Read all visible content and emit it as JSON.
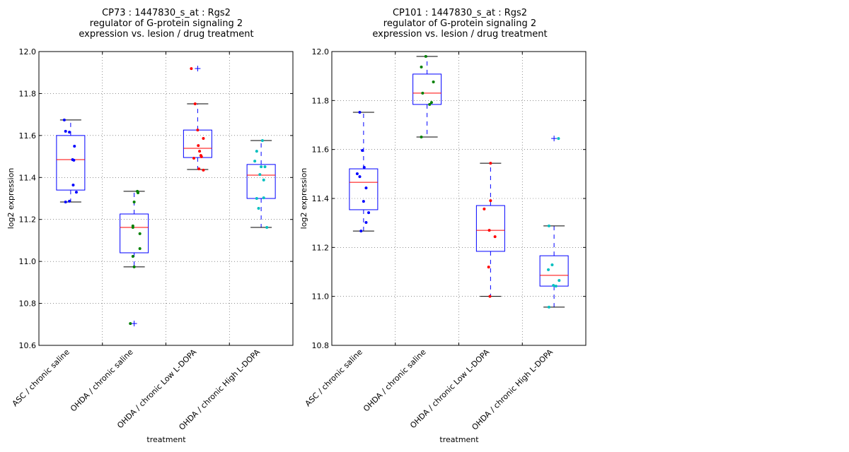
{
  "chart_data": [
    {
      "type": "boxplot",
      "title": [
        "CP73 : 1447830_s_at : Rgs2",
        "regulator of G-protein signaling 2",
        "expression vs. lesion / drug treatment"
      ],
      "xlabel": "treatment",
      "ylabel": "log2 expression",
      "ylim": [
        10.6,
        12.0
      ],
      "yticks": [
        "12.0",
        "11.8",
        "11.6",
        "11.4",
        "11.2",
        "11.0",
        "10.8",
        "10.6"
      ],
      "ytick_values": [
        12.0,
        11.8,
        11.6,
        11.4,
        11.2,
        11.0,
        10.8,
        10.6
      ],
      "grid": true,
      "categories": [
        "ASC / chronic saline",
        "OHDA / chronic saline",
        "OHDA / chronic Low L-DOPA",
        "OHDA / chronic High L-DOPA"
      ],
      "point_colors": [
        "#0000ff",
        "#008000",
        "#ff0000",
        "#00bfbf"
      ],
      "boxes": [
        {
          "whisker_low": 11.283,
          "q1": 11.34,
          "median": 11.485,
          "q3": 11.6,
          "whisker_high": 11.674,
          "outliers": []
        },
        {
          "whisker_low": 10.974,
          "q1": 11.041,
          "median": 11.162,
          "q3": 11.226,
          "whisker_high": 11.334,
          "outliers": [
            10.704
          ]
        },
        {
          "whisker_low": 11.438,
          "q1": 11.495,
          "median": 11.539,
          "q3": 11.626,
          "whisker_high": 11.751,
          "outliers": [
            11.919
          ]
        },
        {
          "whisker_low": 11.162,
          "q1": 11.3,
          "median": 11.411,
          "q3": 11.462,
          "whisker_high": 11.576,
          "outliers": []
        }
      ],
      "points": [
        [
          [
            -0.1,
            11.674
          ],
          [
            -0.08,
            11.62
          ],
          [
            -0.02,
            11.616
          ],
          [
            0.06,
            11.549
          ],
          [
            0.03,
            11.485
          ],
          [
            0.05,
            11.482
          ],
          [
            0.04,
            11.364
          ],
          [
            0.09,
            11.33
          ],
          [
            -0.08,
            11.283
          ],
          [
            -0.02,
            11.287
          ]
        ],
        [
          [
            0.05,
            11.334
          ],
          [
            0.06,
            11.327
          ],
          [
            0.0,
            11.283
          ],
          [
            -0.02,
            11.169
          ],
          [
            -0.02,
            11.162
          ],
          [
            0.09,
            11.132
          ],
          [
            0.09,
            11.061
          ],
          [
            -0.02,
            11.024
          ],
          [
            0.0,
            10.974
          ],
          [
            -0.06,
            10.704
          ]
        ],
        [
          [
            -0.1,
            11.919
          ],
          [
            -0.04,
            11.751
          ],
          [
            0.0,
            11.626
          ],
          [
            0.09,
            11.586
          ],
          [
            0.01,
            11.552
          ],
          [
            0.03,
            11.525
          ],
          [
            0.05,
            11.505
          ],
          [
            0.06,
            11.499
          ],
          [
            -0.06,
            11.492
          ],
          [
            0.02,
            11.441
          ],
          [
            0.09,
            11.435
          ]
        ],
        [
          [
            0.02,
            11.576
          ],
          [
            -0.07,
            11.525
          ],
          [
            -0.1,
            11.478
          ],
          [
            0.0,
            11.451
          ],
          [
            0.06,
            11.451
          ],
          [
            -0.02,
            11.414
          ],
          [
            0.04,
            11.388
          ],
          [
            -0.07,
            11.3
          ],
          [
            0.04,
            11.303
          ],
          [
            -0.04,
            11.253
          ],
          [
            0.09,
            11.162
          ]
        ]
      ]
    },
    {
      "type": "boxplot",
      "title": [
        "CP101 : 1447830_s_at : Rgs2",
        "regulator of G-protein signaling 2",
        "expression vs. lesion / drug treatment"
      ],
      "xlabel": "treatment",
      "ylabel": "log2 expression",
      "ylim": [
        10.8,
        12.0
      ],
      "yticks": [
        "12.0",
        "11.8",
        "11.6",
        "11.4",
        "11.2",
        "11.0",
        "10.8"
      ],
      "ytick_values": [
        12.0,
        11.8,
        11.6,
        11.4,
        11.2,
        11.0,
        10.8
      ],
      "grid": true,
      "categories": [
        "ASC / chronic saline",
        "OHDA / chronic saline",
        "OHDA / chronic Low L-DOPA",
        "OHDA / chronic High L-DOPA"
      ],
      "point_colors": [
        "#0000ff",
        "#008000",
        "#ff0000",
        "#00bfbf"
      ],
      "boxes": [
        {
          "whisker_low": 11.267,
          "q1": 11.354,
          "median": 11.466,
          "q3": 11.521,
          "whisker_high": 11.752,
          "outliers": []
        },
        {
          "whisker_low": 11.651,
          "q1": 11.784,
          "median": 11.83,
          "q3": 11.908,
          "whisker_high": 11.98,
          "outliers": []
        },
        {
          "whisker_low": 11.0,
          "q1": 11.184,
          "median": 11.27,
          "q3": 11.371,
          "whisker_high": 11.544,
          "outliers": []
        },
        {
          "whisker_low": 10.956,
          "q1": 11.042,
          "median": 11.086,
          "q3": 11.166,
          "whisker_high": 11.288,
          "outliers": [
            11.645
          ]
        }
      ],
      "points": [
        [
          [
            -0.06,
            11.752
          ],
          [
            -0.02,
            11.596
          ],
          [
            0.01,
            11.527
          ],
          [
            -0.1,
            11.501
          ],
          [
            -0.06,
            11.489
          ],
          [
            0.04,
            11.443
          ],
          [
            0.0,
            11.388
          ],
          [
            0.08,
            11.342
          ],
          [
            0.04,
            11.302
          ],
          [
            -0.04,
            11.267
          ]
        ],
        [
          [
            -0.02,
            11.98
          ],
          [
            -0.09,
            11.937
          ],
          [
            0.1,
            11.876
          ],
          [
            -0.07,
            11.83
          ],
          [
            0.07,
            11.792
          ],
          [
            0.04,
            11.784
          ],
          [
            -0.09,
            11.651
          ]
        ],
        [
          [
            0.0,
            11.544
          ],
          [
            0.0,
            11.391
          ],
          [
            -0.1,
            11.357
          ],
          [
            -0.02,
            11.27
          ],
          [
            0.07,
            11.244
          ],
          [
            -0.03,
            11.12
          ],
          [
            -0.01,
            11.0
          ]
        ],
        [
          [
            0.07,
            11.645
          ],
          [
            -0.08,
            11.288
          ],
          [
            -0.03,
            11.129
          ],
          [
            -0.09,
            11.109
          ],
          [
            0.08,
            11.065
          ],
          [
            -0.01,
            11.045
          ],
          [
            0.03,
            11.042
          ],
          [
            -0.08,
            10.956
          ]
        ]
      ]
    }
  ]
}
